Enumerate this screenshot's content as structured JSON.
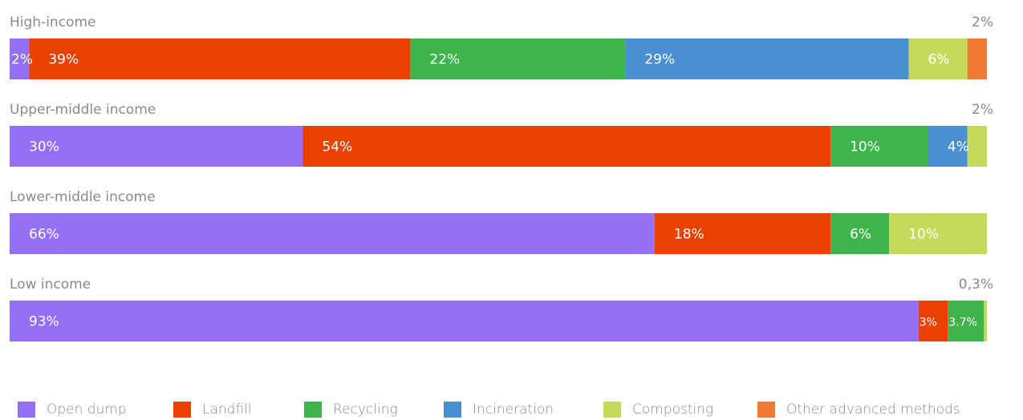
{
  "chart_data": {
    "type": "bar",
    "orientation": "horizontal",
    "stacked": true,
    "normalized": "percent",
    "grid": false,
    "legend_position": "bottom",
    "series": [
      {
        "name": "Open dump",
        "color": "#9370f5"
      },
      {
        "name": "Landfill",
        "color": "#e84100"
      },
      {
        "name": "Recycling",
        "color": "#3db54a"
      },
      {
        "name": "Incineration",
        "color": "#4a8fd1"
      },
      {
        "name": "Composting",
        "color": "#c5d95a"
      },
      {
        "name": "Other advanced methods",
        "color": "#ef7a35"
      }
    ],
    "categories": [
      {
        "name": "High-income",
        "values": [
          2,
          39,
          22,
          29,
          6,
          2
        ],
        "labels": [
          "2%",
          "39%",
          "22%",
          "29%",
          "6%",
          "2%"
        ]
      },
      {
        "name": "Upper-middle income",
        "values": [
          30,
          54,
          10,
          4,
          2,
          0
        ],
        "labels": [
          "30%",
          "54%",
          "10%",
          "4%",
          "2%",
          ""
        ]
      },
      {
        "name": "Lower-middle income",
        "values": [
          66,
          18,
          6,
          0,
          10,
          0
        ],
        "labels": [
          "66%",
          "18%",
          "6%",
          "",
          "10%",
          ""
        ]
      },
      {
        "name": "Low income",
        "values": [
          93,
          3,
          3.7,
          0,
          0.3,
          0
        ],
        "labels": [
          "93%",
          "3%",
          "3.7%",
          "",
          "0,3%",
          ""
        ]
      }
    ]
  }
}
